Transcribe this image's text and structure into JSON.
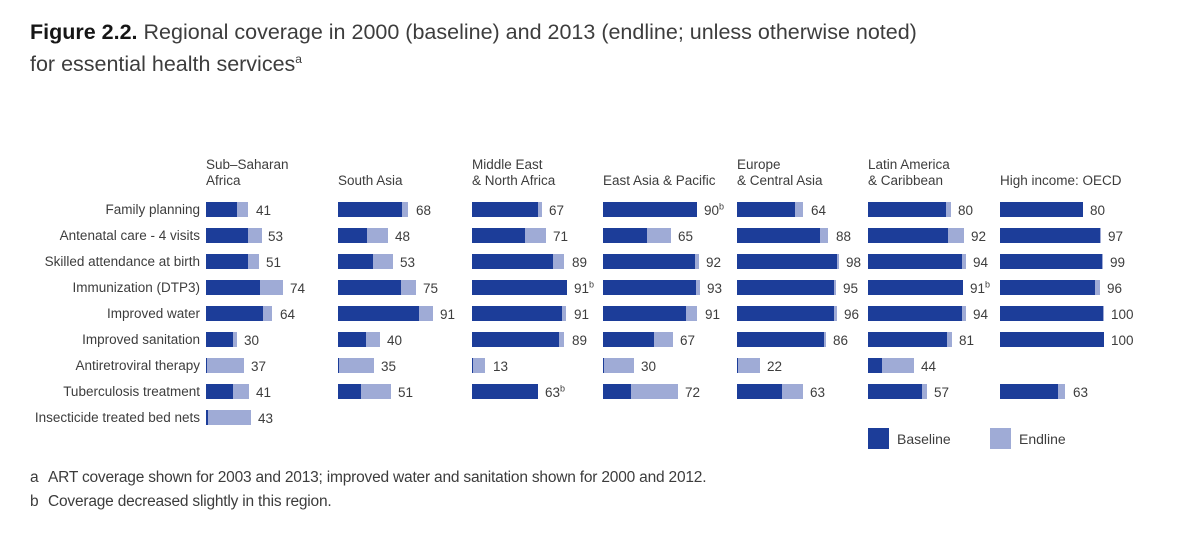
{
  "title": {
    "figure_label": "Figure 2.2.",
    "line1_rest": " Regional coverage in 2000 (baseline) and 2013 (endline; unless otherwise noted)",
    "line2": "for essential health services",
    "superscript": "a"
  },
  "legend": {
    "baseline_label": "Baseline",
    "endline_label": "Endline"
  },
  "footnotes": [
    {
      "letter": "a",
      "text": "ART coverage shown for 2003 and 2013; improved water and sanitation shown for 2000 and 2012."
    },
    {
      "letter": "b",
      "text": "Coverage decreased slightly in this region."
    }
  ],
  "chart_data": {
    "type": "bar",
    "orientation": "horizontal",
    "unit": "percent coverage (0-100 per region column)",
    "xlim": [
      0,
      100
    ],
    "colors": {
      "baseline": "#1c3d99",
      "endline": "#9fabd6"
    },
    "legend": [
      {
        "name": "Baseline",
        "color": "#1c3d99"
      },
      {
        "name": "Endline",
        "color": "#9fabd6"
      }
    ],
    "region_headers": [
      [
        "Sub–Saharan",
        "Africa"
      ],
      [
        "South Asia"
      ],
      [
        "Middle East",
        "& North Africa"
      ],
      [
        "East Asia & Pacific"
      ],
      [
        "Europe",
        "& Central Asia"
      ],
      [
        "Latin America",
        "& Caribbean"
      ],
      [
        "High income: OECD"
      ]
    ],
    "regions": [
      "Sub–Saharan Africa",
      "South Asia",
      "Middle East & North Africa",
      "East Asia & Pacific",
      "Europe & Central Asia",
      "Latin America & Caribbean",
      "High income: OECD"
    ],
    "note_b_meaning": "Coverage decreased slightly in this region (bar drawn as baseline color only)",
    "rows": [
      {
        "label": "Family planning",
        "values": [
          {
            "baseline": 30,
            "endline": 41
          },
          {
            "baseline": 62,
            "endline": 68
          },
          {
            "baseline": 63,
            "endline": 67
          },
          {
            "baseline": null,
            "endline": 90,
            "note": "b"
          },
          {
            "baseline": 56,
            "endline": 64
          },
          {
            "baseline": 75,
            "endline": 80
          },
          {
            "baseline": 80,
            "endline": 80
          }
        ]
      },
      {
        "label": "Antenatal care - 4 visits",
        "values": [
          {
            "baseline": 40,
            "endline": 53
          },
          {
            "baseline": 28,
            "endline": 48
          },
          {
            "baseline": 51,
            "endline": 71
          },
          {
            "baseline": 42,
            "endline": 65
          },
          {
            "baseline": 80,
            "endline": 88
          },
          {
            "baseline": 77,
            "endline": 92
          },
          {
            "baseline": 96,
            "endline": 97
          }
        ]
      },
      {
        "label": "Skilled attendance at birth",
        "values": [
          {
            "baseline": 40,
            "endline": 51
          },
          {
            "baseline": 34,
            "endline": 53
          },
          {
            "baseline": 78,
            "endline": 89
          },
          {
            "baseline": 88,
            "endline": 92
          },
          {
            "baseline": 96,
            "endline": 98
          },
          {
            "baseline": 90,
            "endline": 94
          },
          {
            "baseline": 98,
            "endline": 99
          }
        ]
      },
      {
        "label": "Immunization (DTP3)",
        "values": [
          {
            "baseline": 52,
            "endline": 74
          },
          {
            "baseline": 61,
            "endline": 75
          },
          {
            "baseline": null,
            "endline": 91,
            "note": "b"
          },
          {
            "baseline": 89,
            "endline": 93
          },
          {
            "baseline": 93,
            "endline": 95
          },
          {
            "baseline": null,
            "endline": 91,
            "note": "b"
          },
          {
            "baseline": 91,
            "endline": 96
          }
        ]
      },
      {
        "label": "Improved water",
        "values": [
          {
            "baseline": 55,
            "endline": 64
          },
          {
            "baseline": 78,
            "endline": 91
          },
          {
            "baseline": 87,
            "endline": 91
          },
          {
            "baseline": 80,
            "endline": 91
          },
          {
            "baseline": 93,
            "endline": 96
          },
          {
            "baseline": 90,
            "endline": 94
          },
          {
            "baseline": 99,
            "endline": 100
          }
        ]
      },
      {
        "label": "Improved sanitation",
        "values": [
          {
            "baseline": 26,
            "endline": 30
          },
          {
            "baseline": 27,
            "endline": 40
          },
          {
            "baseline": 84,
            "endline": 89
          },
          {
            "baseline": 49,
            "endline": 67
          },
          {
            "baseline": 84,
            "endline": 86
          },
          {
            "baseline": 76,
            "endline": 81
          },
          {
            "baseline": 100,
            "endline": 100
          }
        ]
      },
      {
        "label": "Antiretroviral therapy",
        "values": [
          {
            "baseline": 1,
            "endline": 37
          },
          {
            "baseline": 1,
            "endline": 35
          },
          {
            "baseline": 1,
            "endline": 13
          },
          {
            "baseline": 1,
            "endline": 30
          },
          {
            "baseline": 1,
            "endline": 22
          },
          {
            "baseline": 13,
            "endline": 44
          },
          null
        ]
      },
      {
        "label": "Tuberculosis treatment",
        "values": [
          {
            "baseline": 26,
            "endline": 41
          },
          {
            "baseline": 22,
            "endline": 51
          },
          {
            "baseline": null,
            "endline": 63,
            "note": "b"
          },
          {
            "baseline": 27,
            "endline": 72
          },
          {
            "baseline": 43,
            "endline": 63
          },
          {
            "baseline": 52,
            "endline": 57
          },
          {
            "baseline": 56,
            "endline": 63
          }
        ]
      },
      {
        "label": "Insecticide treated bed nets",
        "values": [
          {
            "baseline": 2,
            "endline": 43
          },
          null,
          null,
          null,
          null,
          null,
          null
        ]
      }
    ]
  }
}
